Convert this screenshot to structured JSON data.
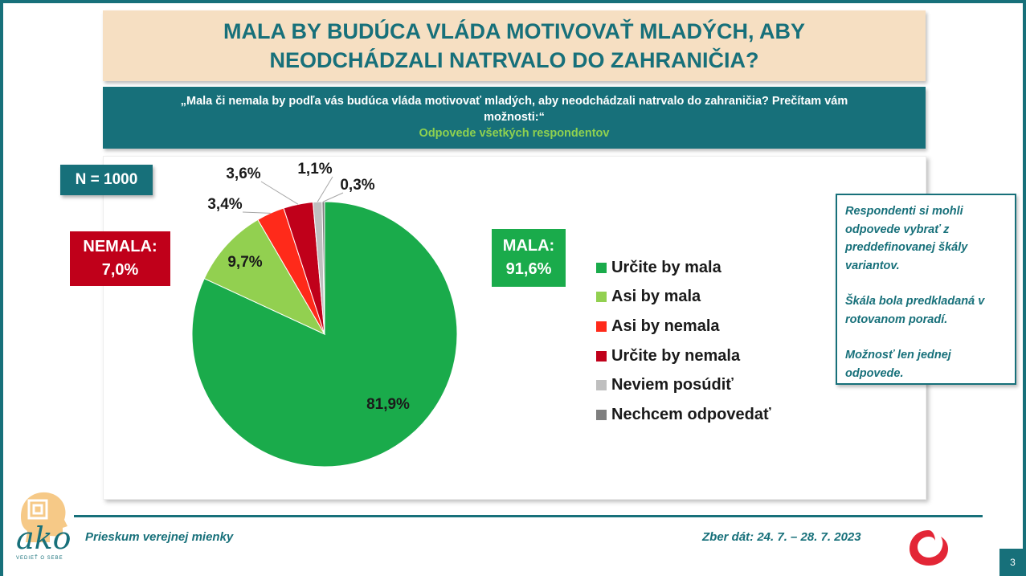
{
  "title": "MALA BY BUDÚCA VLÁDA MOTIVOVAŤ MLADÝCH, ABY NEODCHÁDZALI NATRVALO DO ZAHRANIČIA?",
  "question": "„Mala či nemala by podľa vás budúca vláda motivovať mladých, aby neodchádzali natrvalo do zahraničia? Prečítam vám možnosti:“",
  "question_sub": "Odpovede všetkých respondentov",
  "n_label": "N = 1000",
  "nemala_label": "NEMALA:",
  "nemala_value": "7,0%",
  "mala_label": "MALA:",
  "mala_value": "91,6%",
  "note": {
    "p1": "Respondenti si mohli odpovede vybrať z preddefinovanej škály variantov.",
    "p2": "Škála bola predkladaná v rotovanom poradí.",
    "p3": "Možnosť len jednej odpovede."
  },
  "footer": {
    "left": "Prieskum verejnej mienky",
    "right": "Zber dát: 24. 7. – 28. 7. 2023",
    "page": "3",
    "logo_text": "ako",
    "logo_sub": "VEDIEŤ O SEBE"
  },
  "chart_data": {
    "type": "pie",
    "title": "",
    "slices": [
      {
        "label": "Určite by mala",
        "value": 81.9,
        "display": "81,9%",
        "color": "#1aab4b"
      },
      {
        "label": "Asi by mala",
        "value": 9.7,
        "display": "9,7%",
        "color": "#92d050"
      },
      {
        "label": "Asi by nemala",
        "value": 3.4,
        "display": "3,4%",
        "color": "#ff2a1a"
      },
      {
        "label": "Určite by nemala",
        "value": 3.6,
        "display": "3,6%",
        "color": "#c0001a"
      },
      {
        "label": "Neviem posúdiť",
        "value": 1.1,
        "display": "1,1%",
        "color": "#bfbfbf"
      },
      {
        "label": "Nechcem odpovedať",
        "value": 0.3,
        "display": "0,3%",
        "color": "#7f7f7f"
      }
    ],
    "legend_position": "right"
  }
}
